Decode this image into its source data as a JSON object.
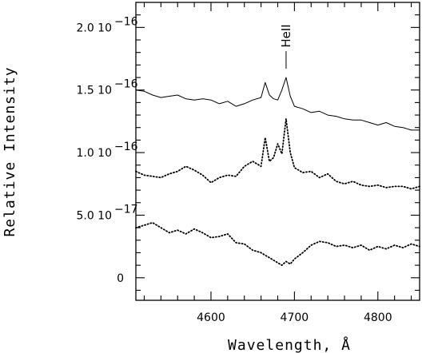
{
  "chart_data": {
    "type": "line",
    "title": "",
    "xlabel": "Wavelength, Å",
    "ylabel": "Relative Intensity",
    "xlim": [
      4510,
      4850
    ],
    "ylim": [
      -1.8e-17,
      2.2e-16
    ],
    "grid": false,
    "x_ticks": [
      {
        "value": 4600,
        "label": "4600"
      },
      {
        "value": 4700,
        "label": "4700"
      },
      {
        "value": 4800,
        "label": "4800"
      }
    ],
    "y_ticks": [
      {
        "value": 0,
        "label": "0"
      },
      {
        "value": 5e-17,
        "label": "5.0  10"
      },
      {
        "value": 1e-16,
        "label": "1.0  10"
      },
      {
        "value": 1.5e-16,
        "label": "1.5  10"
      },
      {
        "value": 2e-16,
        "label": "2.0  10"
      }
    ],
    "y_tick_exponents": [
      "",
      "−17",
      "−16",
      "−16",
      "−16"
    ],
    "annotations": [
      {
        "text": "HeII",
        "x": 4690
      }
    ],
    "series": [
      {
        "style": "solid",
        "x": [
          4510,
          4520,
          4530,
          4540,
          4550,
          4560,
          4570,
          4580,
          4590,
          4600,
          4610,
          4620,
          4630,
          4640,
          4650,
          4660,
          4665,
          4670,
          4675,
          4680,
          4685,
          4690,
          4695,
          4700,
          4710,
          4720,
          4730,
          4740,
          4750,
          4760,
          4770,
          4780,
          4790,
          4800,
          4810,
          4820,
          4830,
          4840,
          4850
        ],
        "y": [
          1.5e-16,
          1.49e-16,
          1.46e-16,
          1.44e-16,
          1.45e-16,
          1.46e-16,
          1.43e-16,
          1.42e-16,
          1.43e-16,
          1.42e-16,
          1.39e-16,
          1.41e-16,
          1.37e-16,
          1.39e-16,
          1.42e-16,
          1.44e-16,
          1.56e-16,
          1.46e-16,
          1.43e-16,
          1.42e-16,
          1.5e-16,
          1.6e-16,
          1.45e-16,
          1.37e-16,
          1.35e-16,
          1.32e-16,
          1.33e-16,
          1.3e-16,
          1.29e-16,
          1.27e-16,
          1.26e-16,
          1.26e-16,
          1.24e-16,
          1.22e-16,
          1.24e-16,
          1.21e-16,
          1.2e-16,
          1.18e-16,
          1.18e-16
        ]
      },
      {
        "style": "dotted",
        "x": [
          4510,
          4520,
          4530,
          4540,
          4550,
          4560,
          4570,
          4580,
          4590,
          4600,
          4610,
          4620,
          4630,
          4640,
          4650,
          4660,
          4665,
          4670,
          4675,
          4680,
          4685,
          4690,
          4695,
          4700,
          4710,
          4720,
          4730,
          4740,
          4750,
          4760,
          4770,
          4780,
          4790,
          4800,
          4810,
          4820,
          4830,
          4840,
          4850
        ],
        "y": [
          8.5e-17,
          8.2e-17,
          8.1e-17,
          8e-17,
          8.3e-17,
          8.5e-17,
          8.9e-17,
          8.6e-17,
          8.2e-17,
          7.6e-17,
          8e-17,
          8.2e-17,
          8.1e-17,
          8.9e-17,
          9.3e-17,
          8.9e-17,
          1.12e-16,
          9.3e-17,
          9.6e-17,
          1.07e-16,
          9.9e-17,
          1.27e-16,
          1e-16,
          8.8e-17,
          8.4e-17,
          8.5e-17,
          8e-17,
          8.3e-17,
          7.7e-17,
          7.5e-17,
          7.7e-17,
          7.4e-17,
          7.3e-17,
          7.4e-17,
          7.2e-17,
          7.3e-17,
          7.3e-17,
          7.1e-17,
          7.3e-17
        ]
      },
      {
        "style": "dotted",
        "x": [
          4510,
          4520,
          4530,
          4540,
          4550,
          4560,
          4570,
          4580,
          4590,
          4600,
          4610,
          4620,
          4630,
          4640,
          4650,
          4660,
          4665,
          4670,
          4675,
          4680,
          4685,
          4690,
          4695,
          4700,
          4710,
          4720,
          4730,
          4740,
          4750,
          4760,
          4770,
          4780,
          4790,
          4800,
          4810,
          4820,
          4830,
          4840,
          4850
        ],
        "y": [
          4e-17,
          4.2e-17,
          4.4e-17,
          4e-17,
          3.6e-17,
          3.8e-17,
          3.5e-17,
          3.9e-17,
          3.6e-17,
          3.2e-17,
          3.3e-17,
          3.5e-17,
          2.8e-17,
          2.7e-17,
          2.2e-17,
          2e-17,
          1.8e-17,
          1.6e-17,
          1.4e-17,
          1.2e-17,
          1e-17,
          1.3e-17,
          1.1e-17,
          1.5e-17,
          2e-17,
          2.6e-17,
          2.9e-17,
          2.8e-17,
          2.5e-17,
          2.6e-17,
          2.4e-17,
          2.6e-17,
          2.2e-17,
          2.5e-17,
          2.3e-17,
          2.6e-17,
          2.4e-17,
          2.7e-17,
          2.5e-17
        ]
      }
    ]
  }
}
